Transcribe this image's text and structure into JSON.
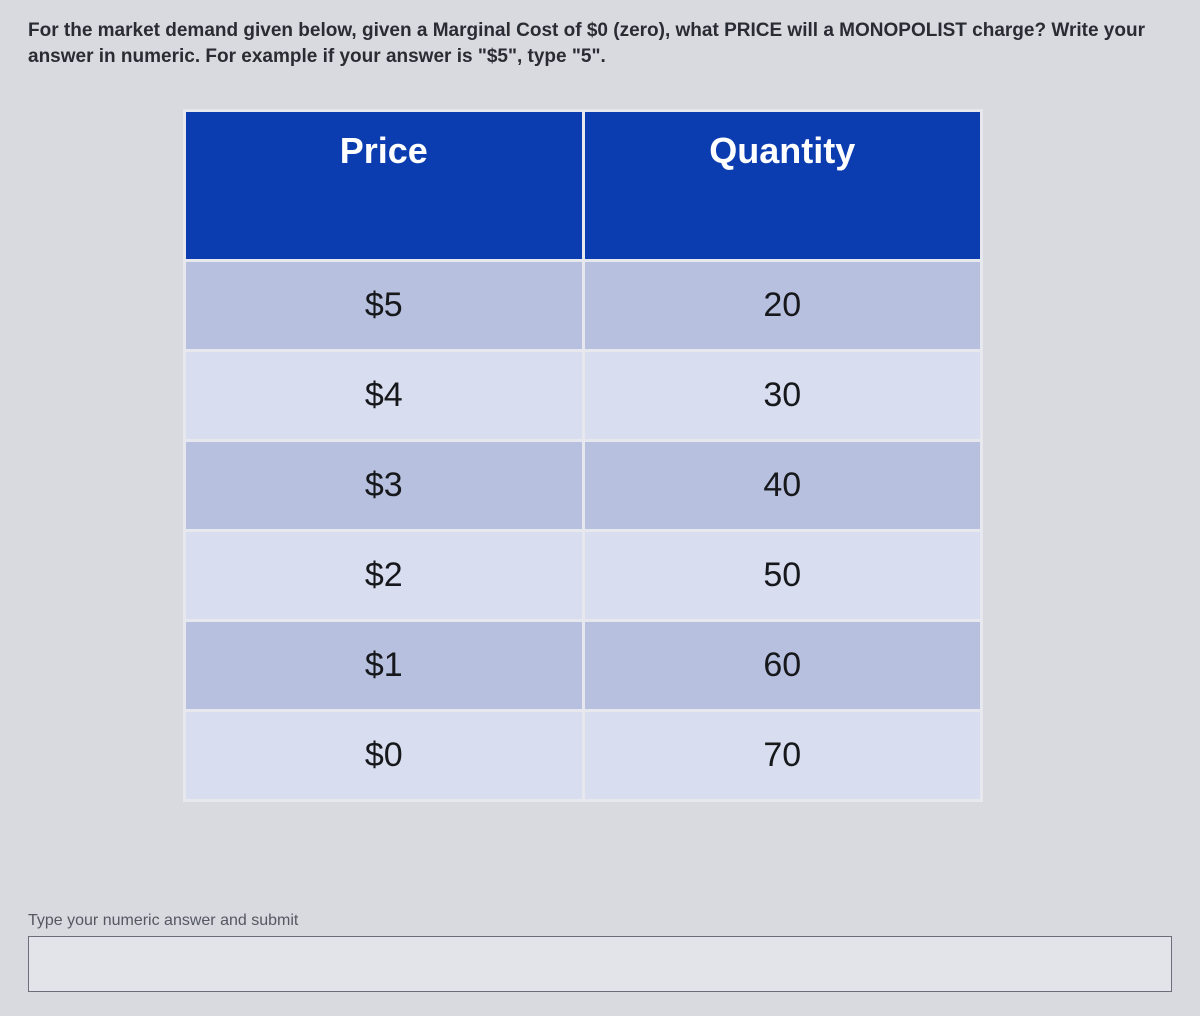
{
  "question": {
    "text": "For the market demand given below, given a Marginal Cost of $0 (zero), what PRICE will a MONOPOLIST charge? Write your answer in numeric. For example if your answer is \"$5\", type \"5\"."
  },
  "table": {
    "headers": {
      "price": "Price",
      "quantity": "Quantity"
    },
    "header_bg": "#0c3db0",
    "header_fg": "#ffffff",
    "row_odd_bg": "#b7c0de",
    "row_even_bg": "#d8ddef",
    "border_color": "#e6e8ee",
    "rows": [
      {
        "price": "$5",
        "quantity": "20"
      },
      {
        "price": "$4",
        "quantity": "30"
      },
      {
        "price": "$3",
        "quantity": "40"
      },
      {
        "price": "$2",
        "quantity": "50"
      },
      {
        "price": "$1",
        "quantity": "60"
      },
      {
        "price": "$0",
        "quantity": "70"
      }
    ]
  },
  "answer": {
    "label": "Type your numeric answer and submit",
    "value": ""
  }
}
